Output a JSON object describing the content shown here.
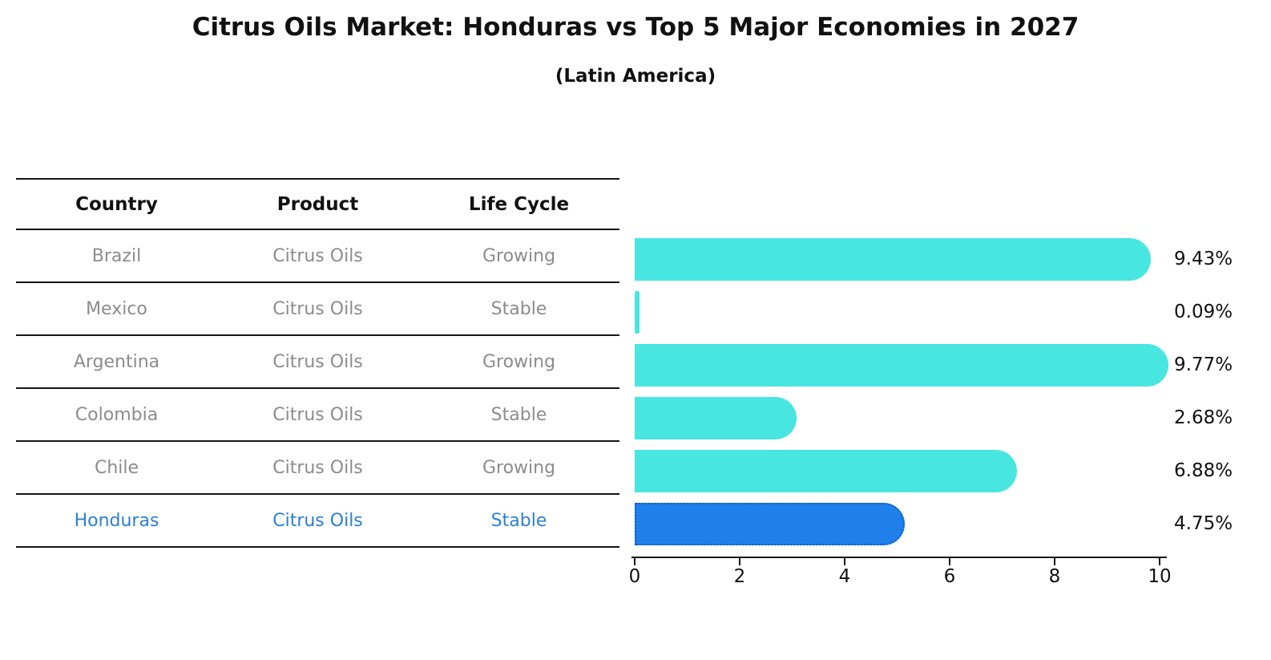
{
  "chart_data": {
    "type": "bar",
    "orientation": "horizontal",
    "title": "Citrus Oils Market: Honduras vs Top 5 Major Economies in 2027",
    "subtitle": "(Latin America)",
    "categories": [
      "Brazil",
      "Mexico",
      "Argentina",
      "Colombia",
      "Chile",
      "Honduras"
    ],
    "values": [
      9.43,
      0.09,
      9.77,
      2.68,
      6.88,
      4.75
    ],
    "value_labels": [
      "9.43%",
      "0.09%",
      "9.77%",
      "2.68%",
      "6.88%",
      "4.75%"
    ],
    "xlim": [
      0,
      10
    ],
    "x_ticks": [
      "0",
      "2",
      "4",
      "6",
      "8",
      "10"
    ],
    "highlight_index": 5,
    "bar_color": "#48e6e1",
    "highlight_color": "#1f7feb",
    "highlight_text_color": "#2b80d5",
    "grid": false,
    "legend": "none"
  },
  "table": {
    "headers": [
      "Country",
      "Product",
      "Life Cycle"
    ],
    "rows": [
      {
        "country": "Brazil",
        "product": "Citrus Oils",
        "life_cycle": "Growing"
      },
      {
        "country": "Mexico",
        "product": "Citrus Oils",
        "life_cycle": "Stable"
      },
      {
        "country": "Argentina",
        "product": "Citrus Oils",
        "life_cycle": "Growing"
      },
      {
        "country": "Colombia",
        "product": "Citrus Oils",
        "life_cycle": "Stable"
      },
      {
        "country": "Chile",
        "product": "Citrus Oils",
        "life_cycle": "Growing"
      },
      {
        "country": "Honduras",
        "product": "Citrus Oils",
        "life_cycle": "Stable"
      }
    ],
    "highlight_index": 5
  }
}
